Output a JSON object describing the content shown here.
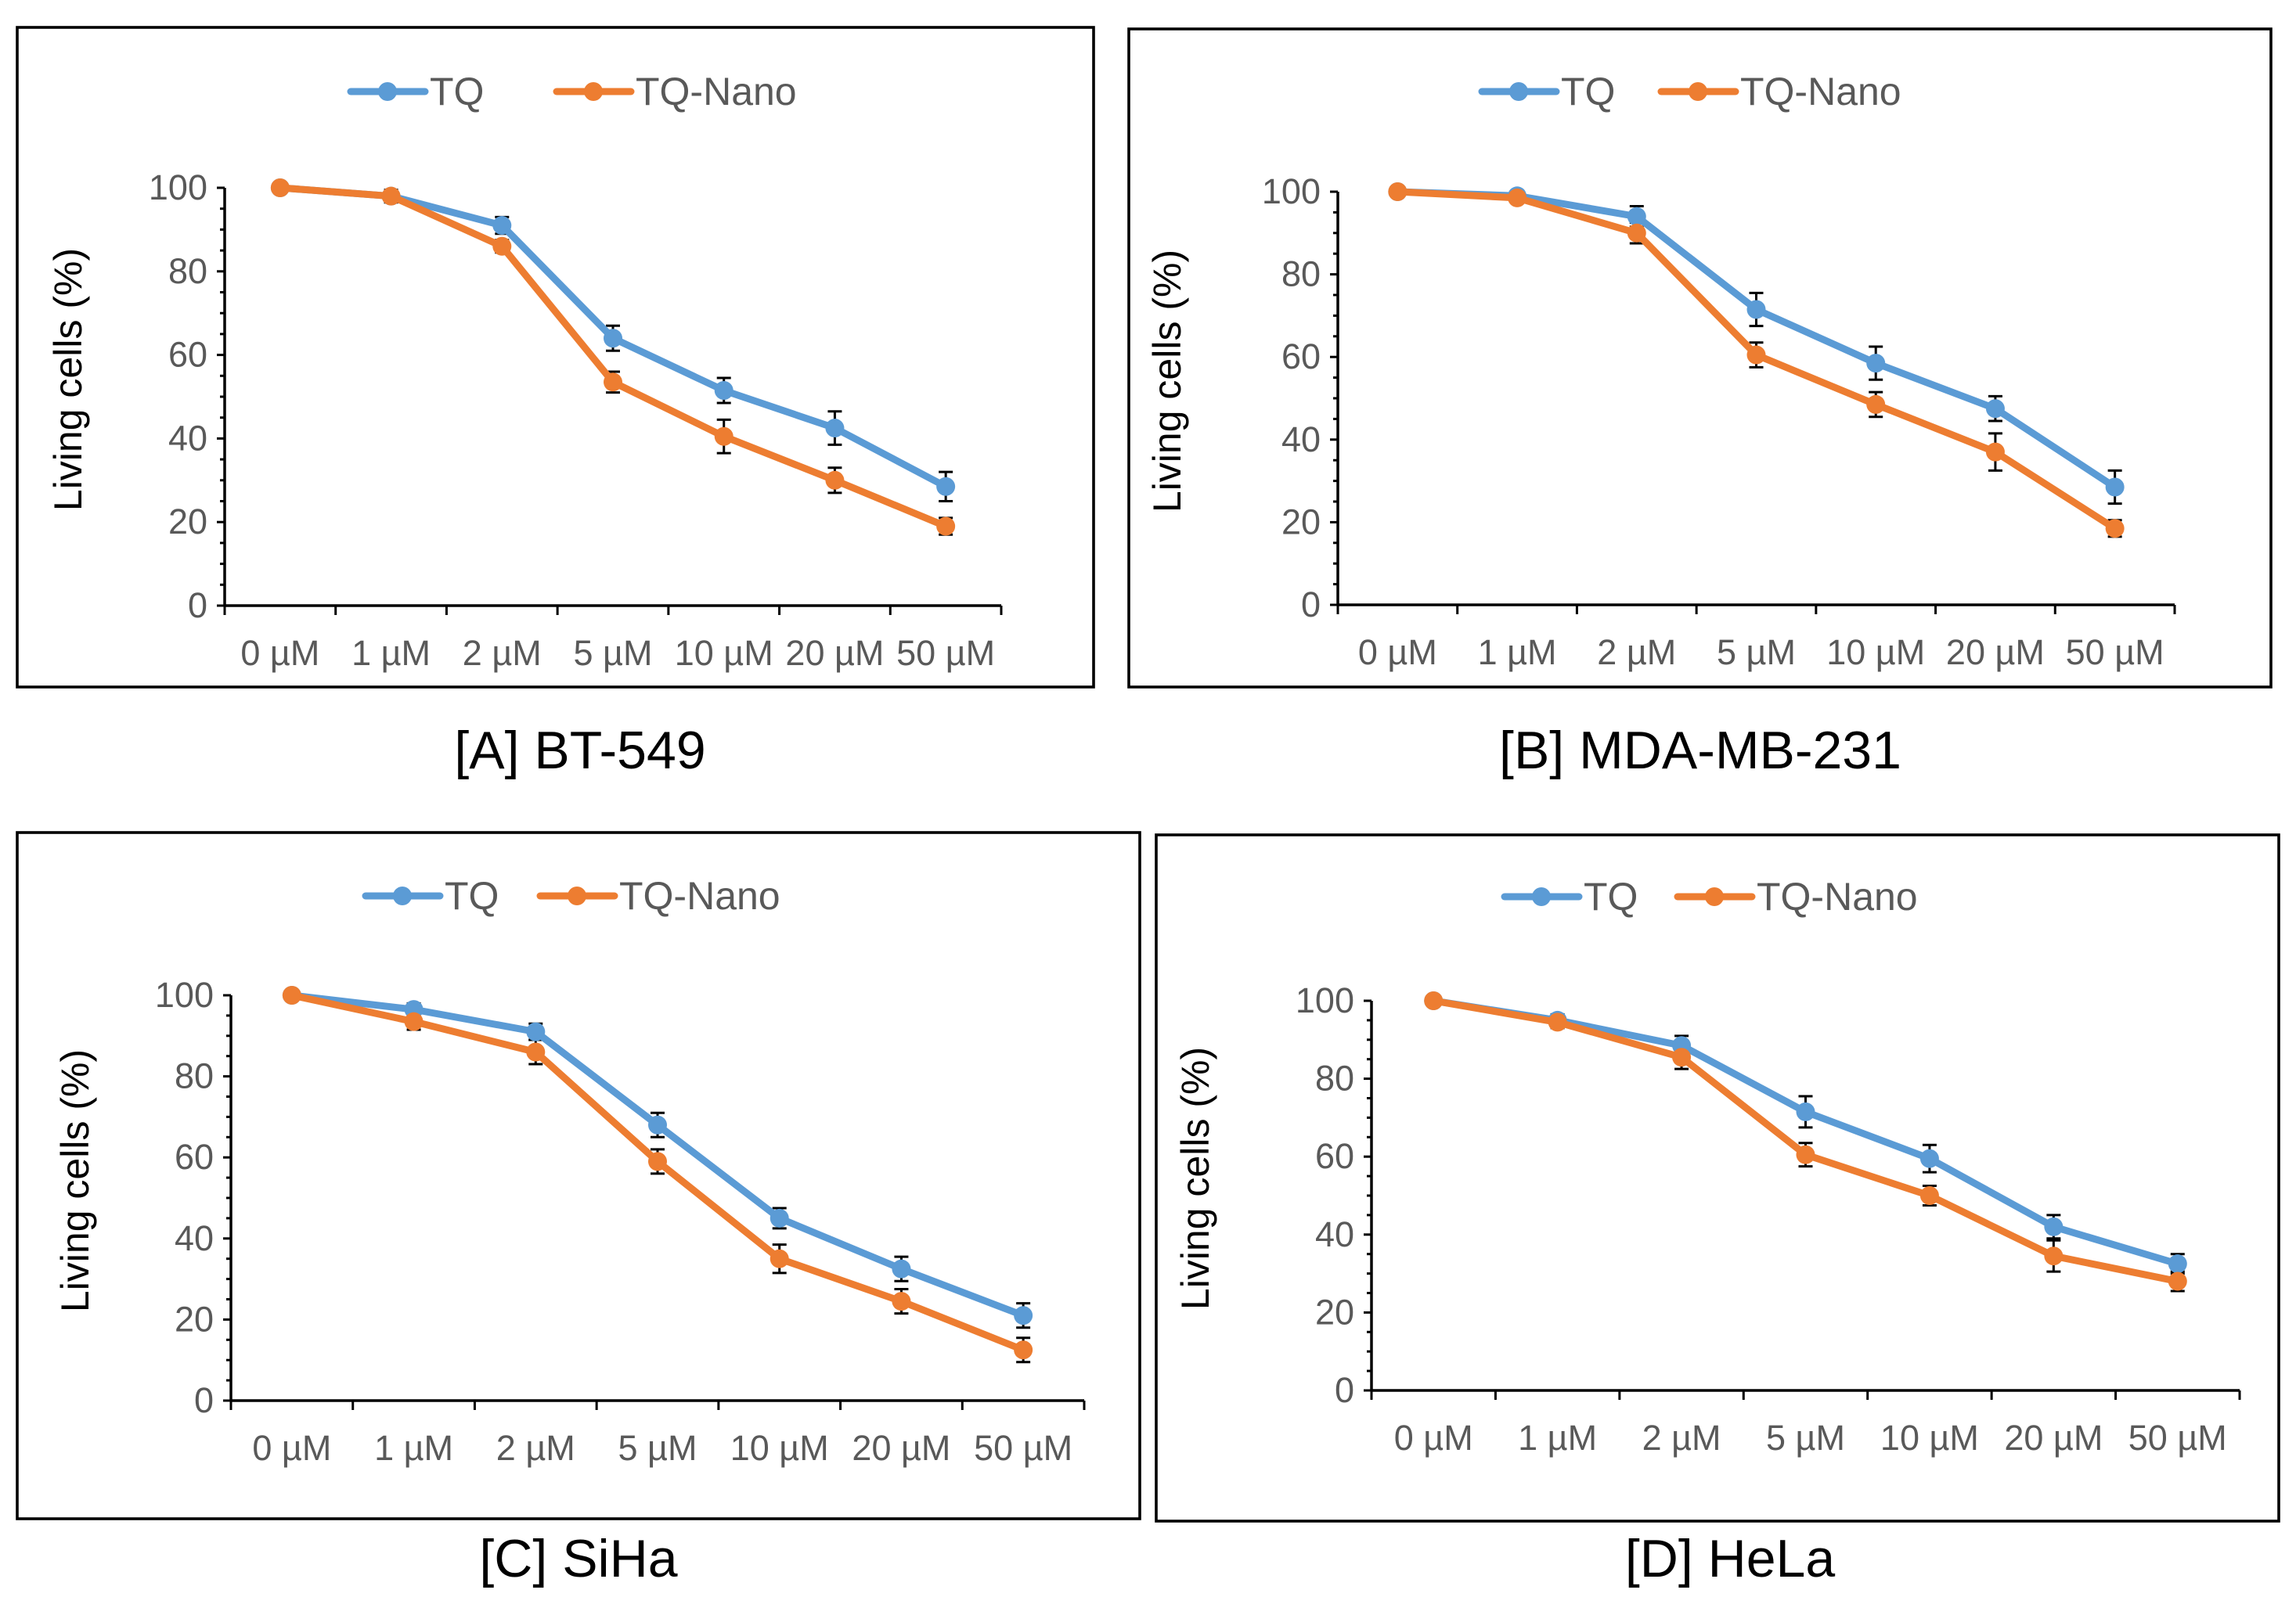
{
  "colors": {
    "tq": "#5B9BD5",
    "tq_nano": "#ED7D31",
    "frame": "#000000",
    "tick_label": "#595959"
  },
  "chart_data": [
    {
      "type": "line",
      "title": "[A] BT-549",
      "ylabel": "Living cells (%)",
      "xlabel": "",
      "ylim": [
        0,
        100
      ],
      "yticks": [
        0,
        20,
        40,
        60,
        80,
        100
      ],
      "categories": [
        "0 µM",
        "1 µM",
        "2 µM",
        "5 µM",
        "10 µM",
        "20 µM",
        "50 µM"
      ],
      "legend": [
        "TQ",
        "TQ-Nano"
      ],
      "legend_position": "top",
      "series": [
        {
          "name": "TQ",
          "values": [
            100,
            98,
            91,
            64,
            51.5,
            42.5,
            28.5
          ],
          "errors": [
            0.5,
            1.5,
            2,
            3,
            3,
            4,
            3.5
          ]
        },
        {
          "name": "TQ-Nano",
          "values": [
            100,
            98,
            86,
            53.5,
            40.5,
            30,
            19
          ],
          "errors": [
            0.5,
            1,
            1.5,
            2.5,
            4,
            3,
            2
          ]
        }
      ]
    },
    {
      "type": "line",
      "title": "[B] MDA-MB-231",
      "ylabel": "Living cells (%)",
      "xlabel": "",
      "ylim": [
        0,
        100
      ],
      "yticks": [
        0,
        20,
        40,
        60,
        80,
        100
      ],
      "categories": [
        "0 µM",
        "1 µM",
        "2 µM",
        "5 µM",
        "10 µM",
        "20 µM",
        "50 µM"
      ],
      "legend": [
        "TQ",
        "TQ-Nano"
      ],
      "legend_position": "top",
      "series": [
        {
          "name": "TQ",
          "values": [
            100,
            99,
            94,
            71.5,
            58.5,
            47.5,
            28.5
          ],
          "errors": [
            0.5,
            1,
            2.5,
            4,
            4,
            3,
            4
          ]
        },
        {
          "name": "TQ-Nano",
          "values": [
            100,
            98.5,
            90,
            60.5,
            48.5,
            37,
            18.5
          ],
          "errors": [
            0.5,
            1,
            2.5,
            3,
            3,
            4.5,
            2
          ]
        }
      ]
    },
    {
      "type": "line",
      "title": "[C] SiHa",
      "ylabel": "Living cells (%)",
      "xlabel": "",
      "ylim": [
        0,
        100
      ],
      "yticks": [
        0,
        20,
        40,
        60,
        80,
        100
      ],
      "categories": [
        "0 µM",
        "1 µM",
        "2 µM",
        "5 µM",
        "10 µM",
        "20 µM",
        "50 µM"
      ],
      "legend": [
        "TQ",
        "TQ-Nano"
      ],
      "legend_position": "top",
      "series": [
        {
          "name": "TQ",
          "values": [
            100,
            96.5,
            91,
            68,
            45,
            32.5,
            21
          ],
          "errors": [
            0.5,
            1.5,
            2,
            3,
            2.5,
            3,
            3
          ]
        },
        {
          "name": "TQ-Nano",
          "values": [
            100,
            93.5,
            86,
            59,
            35,
            24.5,
            12.5
          ],
          "errors": [
            0.5,
            2,
            3,
            3,
            3.5,
            3,
            3
          ]
        }
      ]
    },
    {
      "type": "line",
      "title": "[D] HeLa",
      "ylabel": "Living cells (%)",
      "xlabel": "",
      "ylim": [
        0,
        100
      ],
      "yticks": [
        0,
        20,
        40,
        60,
        80,
        100
      ],
      "categories": [
        "0 µM",
        "1 µM",
        "2 µM",
        "5 µM",
        "10 µM",
        "20 µM",
        "50 µM"
      ],
      "legend": [
        "TQ",
        "TQ-Nano"
      ],
      "legend_position": "top",
      "series": [
        {
          "name": "TQ",
          "values": [
            100,
            95,
            88.5,
            71.5,
            59.5,
            42,
            32.5
          ],
          "errors": [
            0.5,
            1.5,
            2.5,
            4,
            3.5,
            3,
            2.5
          ]
        },
        {
          "name": "TQ-Nano",
          "values": [
            100,
            94.5,
            85.5,
            60.5,
            50,
            34.5,
            28
          ],
          "errors": [
            0.5,
            1.5,
            3,
            3,
            2.5,
            4,
            2.5
          ]
        }
      ]
    }
  ]
}
